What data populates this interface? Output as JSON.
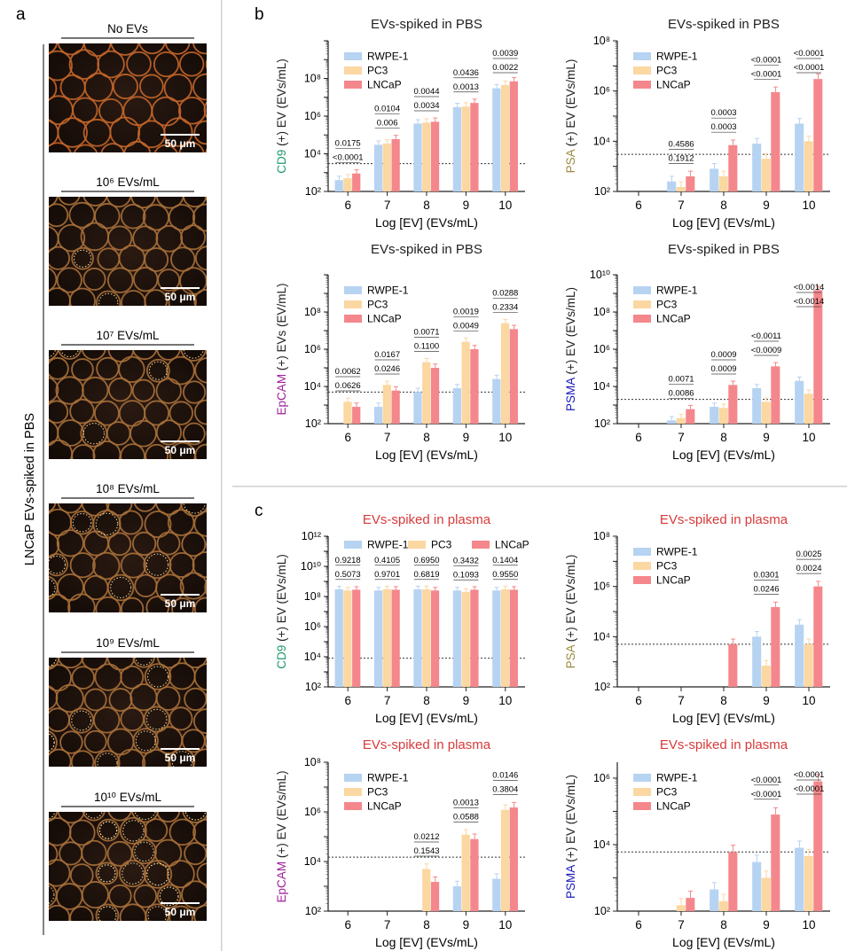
{
  "panel_labels": {
    "a": "a",
    "b": "b",
    "c": "c"
  },
  "colors": {
    "RWPE-1": "#b7d3f2",
    "PC3": "#fbd7a1",
    "LNCaP": "#f4878c",
    "cd9": "#1f9a6b",
    "psa": "#9a8a3f",
    "epcam": "#a0209a",
    "psma": "#1a1ab8",
    "title_pbs": "#222222",
    "title_plasma": "#d83a3a"
  },
  "panel_a": {
    "side_label": "LNCaP EVs-spiked in PBS",
    "scale_bar": "50 μm",
    "images": [
      {
        "label": "No EVs",
        "dots": 0
      },
      {
        "label": "10⁶ EVs/mL",
        "dots": 4
      },
      {
        "label": "10⁷ EVs/mL",
        "dots": 6
      },
      {
        "label": "10⁸ EVs/mL",
        "dots": 10
      },
      {
        "label": "10⁹ EVs/mL",
        "dots": 16
      },
      {
        "label": "10¹⁰ EVs/mL",
        "dots": 30
      }
    ]
  },
  "chart_data": [
    {
      "type": "bar",
      "panel": "b",
      "title": "EVs-spiked in PBS",
      "ylabel_marker": "CD9",
      "ylabel_rest": " (+) EV (EVs/mL)",
      "xlabel": "Log [EV] (EVs/mL)",
      "yscale": "log",
      "ylim": [
        100,
        10000000000.0
      ],
      "yticks": [
        "10²",
        "10⁴",
        "10⁶",
        "10⁸"
      ],
      "ytick_exp": [
        2,
        4,
        6,
        8
      ],
      "categories": [
        "6",
        "7",
        "8",
        "9",
        "10"
      ],
      "threshold": 3000,
      "legend": [
        "RWPE-1",
        "PC3",
        "LNCaP"
      ],
      "series": [
        {
          "name": "RWPE-1",
          "values": [
            400,
            30000,
            400000,
            3000000,
            30000000
          ]
        },
        {
          "name": "PC3",
          "values": [
            500,
            35000,
            450000,
            3200000,
            45000000
          ]
        },
        {
          "name": "LNCaP",
          "values": [
            900,
            60000,
            500000,
            5000000,
            70000000
          ]
        }
      ],
      "pvalues": [
        [
          "<0.0001",
          "0.0175"
        ],
        [
          "0.006",
          "0.0104"
        ],
        [
          "0.0034",
          "0.0044"
        ],
        [
          "0.0013",
          "0.0436"
        ],
        [
          "0.0022",
          "0.0039"
        ]
      ]
    },
    {
      "type": "bar",
      "panel": "b",
      "title": "EVs-spiked in PBS",
      "ylabel_marker": "PSA",
      "ylabel_rest": " (+) EV (EVs/mL)",
      "xlabel": "Log [EV] (EVs/mL)",
      "yscale": "log",
      "ylim": [
        100,
        100000000.0
      ],
      "yticks": [
        "10²",
        "10⁴",
        "10⁶",
        "10⁸"
      ],
      "ytick_exp": [
        2,
        4,
        6,
        8
      ],
      "categories": [
        "6",
        "7",
        "8",
        "9",
        "10"
      ],
      "threshold": 3000,
      "legend": [
        "RWPE-1",
        "PC3",
        "LNCaP"
      ],
      "series": [
        {
          "name": "RWPE-1",
          "values": [
            null,
            250,
            800,
            8000,
            50000
          ]
        },
        {
          "name": "PC3",
          "values": [
            null,
            150,
            400,
            2000,
            10000
          ]
        },
        {
          "name": "LNCaP",
          "values": [
            null,
            400,
            7000,
            900000,
            3000000
          ]
        }
      ],
      "pvalues": [
        [],
        [
          "0.1912",
          "0.4586"
        ],
        [
          "0.0003",
          "0.0003"
        ],
        [
          "<0.0001",
          "<0.0001"
        ],
        [
          "<0.0001",
          "<0.0001"
        ]
      ]
    },
    {
      "type": "bar",
      "panel": "b",
      "title": "EVs-spiked in PBS",
      "ylabel_marker": "EpCAM",
      "ylabel_rest": " (+) EVs (EV/mL)",
      "xlabel": "Log [EV] (EVs/mL)",
      "yscale": "log",
      "ylim": [
        100,
        10000000000.0
      ],
      "yticks": [
        "10²",
        "10⁴",
        "10⁶",
        "10⁸"
      ],
      "ytick_exp": [
        2,
        4,
        6,
        8
      ],
      "categories": [
        "6",
        "7",
        "8",
        "9",
        "10"
      ],
      "threshold": 5000,
      "legend": [
        "RWPE-1",
        "PC3",
        "LNCaP"
      ],
      "series": [
        {
          "name": "RWPE-1",
          "values": [
            null,
            800,
            5000,
            8000,
            25000
          ]
        },
        {
          "name": "PC3",
          "values": [
            1500,
            12000,
            200000,
            2500000,
            25000000
          ]
        },
        {
          "name": "LNCaP",
          "values": [
            800,
            6000,
            100000,
            1000000,
            12000000
          ]
        }
      ],
      "pvalues": [
        [
          "0.0626",
          "0.0062"
        ],
        [
          "0.0246",
          "0.0167"
        ],
        [
          "0.1100",
          "0.0071"
        ],
        [
          "0.0049",
          "0.0019"
        ],
        [
          "0.2334",
          "0.0288"
        ]
      ]
    },
    {
      "type": "bar",
      "panel": "b",
      "title": "EVs-spiked in PBS",
      "ylabel_marker": "PSMA",
      "ylabel_rest": " (+) EV (EVs/mL)",
      "xlabel": "Log [EV] (EVs/mL)",
      "yscale": "log",
      "ylim": [
        100,
        10000000000.0
      ],
      "yticks": [
        "10²",
        "10⁴",
        "10⁶",
        "10⁸",
        "10¹⁰"
      ],
      "ytick_exp": [
        2,
        4,
        6,
        8,
        10
      ],
      "categories": [
        "6",
        "7",
        "8",
        "9",
        "10"
      ],
      "threshold": 2000,
      "legend": [
        "RWPE-1",
        "PC3",
        "LNCaP"
      ],
      "series": [
        {
          "name": "RWPE-1",
          "values": [
            null,
            150,
            800,
            8000,
            20000
          ]
        },
        {
          "name": "PC3",
          "values": [
            null,
            200,
            700,
            1500,
            4000
          ]
        },
        {
          "name": "LNCaP",
          "values": [
            null,
            600,
            12000,
            120000,
            1500000000
          ]
        }
      ],
      "pvalues": [
        [],
        [
          "0.0086",
          "0.0071"
        ],
        [
          "0.0009",
          "0.0009"
        ],
        [
          "<0.0009",
          "<0.0011"
        ],
        [
          "<0.0014",
          "<0.0014"
        ]
      ]
    },
    {
      "type": "bar",
      "panel": "c",
      "title": "EVs-spiked in plasma",
      "ylabel_marker": "CD9",
      "ylabel_rest": " (+) EV (EVs/mL)",
      "xlabel": "Log [EV] (EVs/mL)",
      "yscale": "log",
      "ylim": [
        100,
        1000000000000.0
      ],
      "yticks": [
        "10²",
        "10⁴",
        "10⁶",
        "10⁸",
        "10¹⁰",
        "10¹²"
      ],
      "ytick_exp": [
        2,
        4,
        6,
        8,
        10,
        12
      ],
      "categories": [
        "6",
        "7",
        "8",
        "9",
        "10"
      ],
      "threshold": 8000,
      "legend": [
        "RWPE-1",
        "PC3",
        "LNCaP"
      ],
      "series": [
        {
          "name": "RWPE-1",
          "values": [
            300000000,
            250000000,
            300000000,
            250000000,
            250000000
          ]
        },
        {
          "name": "PC3",
          "values": [
            250000000,
            300000000,
            300000000,
            200000000,
            300000000
          ]
        },
        {
          "name": "LNCaP",
          "values": [
            280000000,
            280000000,
            250000000,
            280000000,
            280000000
          ]
        }
      ],
      "pvalues": [
        [
          "0.5073",
          "0.9218"
        ],
        [
          "0.9701",
          "0.4105"
        ],
        [
          "0.6819",
          "0.6950"
        ],
        [
          "0.1093",
          "0.3432"
        ],
        [
          "0.9550",
          "0.1404"
        ]
      ]
    },
    {
      "type": "bar",
      "panel": "c",
      "title": "EVs-spiked in plasma",
      "ylabel_marker": "PSA",
      "ylabel_rest": " (+) EV (EVs/mL)",
      "xlabel": "Log [EV] (EVs/mL)",
      "yscale": "log",
      "ylim": [
        100,
        100000000.0
      ],
      "yticks": [
        "10²",
        "10⁴",
        "10⁶",
        "10⁸"
      ],
      "ytick_exp": [
        2,
        4,
        6,
        8
      ],
      "categories": [
        "6",
        "7",
        "8",
        "9",
        "10"
      ],
      "threshold": 5000,
      "legend": [
        "RWPE-1",
        "PC3",
        "LNCaP"
      ],
      "series": [
        {
          "name": "RWPE-1",
          "values": [
            null,
            null,
            null,
            10000,
            30000
          ]
        },
        {
          "name": "PC3",
          "values": [
            null,
            null,
            null,
            700,
            5000
          ]
        },
        {
          "name": "LNCaP",
          "values": [
            null,
            null,
            5000,
            150000,
            1000000
          ]
        }
      ],
      "pvalues": [
        [],
        [],
        [],
        [
          "0.0246",
          "0.0301"
        ],
        [
          "0.0024",
          "0.0025"
        ]
      ]
    },
    {
      "type": "bar",
      "panel": "c",
      "title": "EVs-spiked in plasma",
      "ylabel_marker": "EpCAM",
      "ylabel_rest": " (+) EV (EVs/mL)",
      "xlabel": "Log [EV] (EVs/mL)",
      "yscale": "log",
      "ylim": [
        100,
        100000000.0
      ],
      "yticks": [
        "10²",
        "10⁴",
        "10⁶",
        "10⁸"
      ],
      "ytick_exp": [
        2,
        4,
        6,
        8
      ],
      "categories": [
        "6",
        "7",
        "8",
        "9",
        "10"
      ],
      "threshold": 15000,
      "legend": [
        "RWPE-1",
        "PC3",
        "LNCaP"
      ],
      "series": [
        {
          "name": "RWPE-1",
          "values": [
            null,
            null,
            null,
            1000,
            2000
          ]
        },
        {
          "name": "PC3",
          "values": [
            null,
            null,
            5000,
            120000,
            1200000
          ]
        },
        {
          "name": "LNCaP",
          "values": [
            null,
            null,
            1500,
            80000,
            1500000
          ]
        }
      ],
      "pvalues": [
        [],
        [],
        [
          "0.1543",
          "0.0212"
        ],
        [
          "0.0588",
          "0.0013"
        ],
        [
          "0.3804",
          "0.0146"
        ]
      ]
    },
    {
      "type": "bar",
      "panel": "c",
      "title": "EVs-spiked in plasma",
      "ylabel_marker": "PSMA",
      "ylabel_rest": " (+) EV (EVs/mL)",
      "xlabel": "Log [EV] (EVs/mL)",
      "yscale": "log",
      "ylim": [
        100,
        3000000.0
      ],
      "yticks": [
        "10²",
        "10⁴",
        "10⁶"
      ],
      "ytick_exp": [
        2,
        4,
        6
      ],
      "categories": [
        "6",
        "7",
        "8",
        "9",
        "10"
      ],
      "threshold": 6000,
      "legend": [
        "RWPE-1",
        "PC3",
        "LNCaP"
      ],
      "series": [
        {
          "name": "RWPE-1",
          "values": [
            null,
            null,
            450,
            3000,
            8000
          ]
        },
        {
          "name": "PC3",
          "values": [
            null,
            150,
            200,
            1000,
            4500
          ]
        },
        {
          "name": "LNCaP",
          "values": [
            null,
            250,
            6000,
            80000,
            800000
          ]
        }
      ],
      "pvalues": [
        [],
        [],
        [],
        [
          "<0.0001",
          "<0.0001"
        ],
        [
          "<0.0001",
          "<0.0001"
        ]
      ]
    }
  ]
}
